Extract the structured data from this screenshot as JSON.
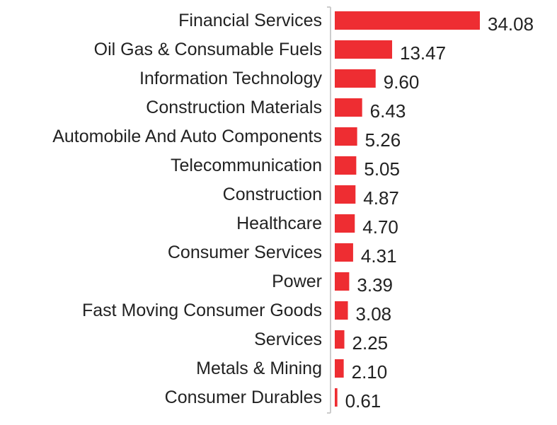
{
  "chart_data": {
    "type": "bar",
    "orientation": "horizontal",
    "title": "",
    "xlabel": "",
    "ylabel": "",
    "categories": [
      "Financial Services",
      "Oil Gas & Consumable Fuels",
      "Information Technology",
      "Construction Materials",
      "Automobile And Auto Components",
      "Telecommunication",
      "Construction",
      "Healthcare",
      "Consumer Services",
      "Power",
      "Fast Moving Consumer Goods",
      "Services",
      "Metals & Mining",
      "Consumer Durables"
    ],
    "values": [
      34.08,
      13.47,
      9.6,
      6.43,
      5.26,
      5.05,
      4.87,
      4.7,
      4.31,
      3.39,
      3.08,
      2.25,
      2.1,
      0.61
    ],
    "value_labels": [
      "34.08",
      "13.47",
      "9.60",
      "6.43",
      "5.26",
      "5.05",
      "4.87",
      "4.70",
      "4.31",
      "3.39",
      "3.08",
      "2.25",
      "2.10",
      "0.61"
    ],
    "xlim": [
      0,
      34.08
    ],
    "grid": false,
    "legend": "none",
    "bar_color": "#ee2d32",
    "axis_color": "#cccccc"
  }
}
